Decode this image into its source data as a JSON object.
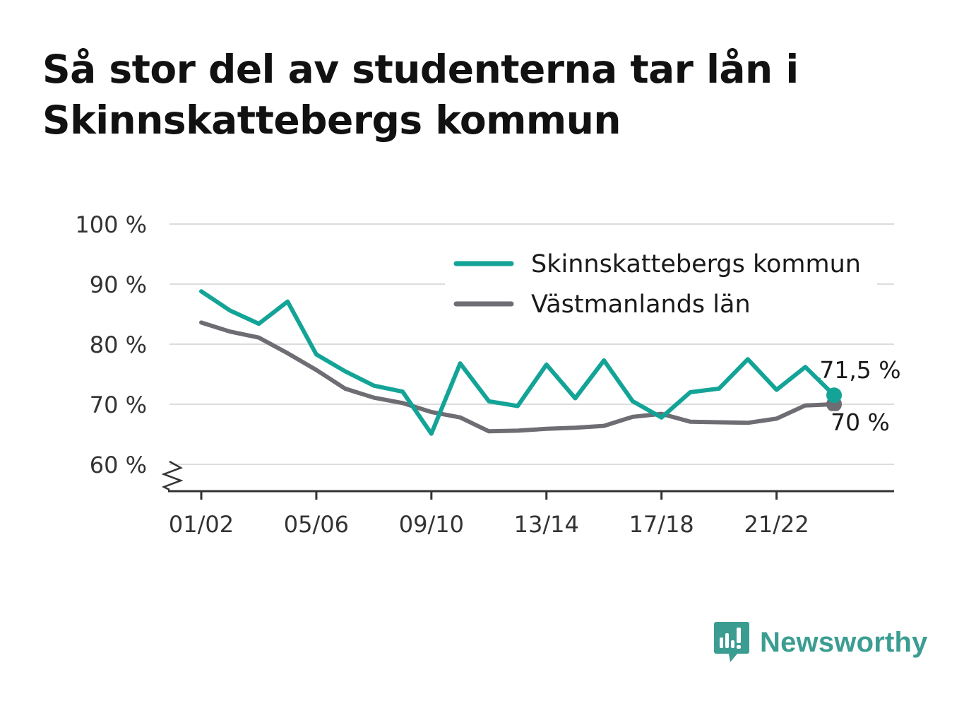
{
  "title_lines": [
    "Så stor del av studenterna tar lån i",
    "Skinnskattebergs kommun"
  ],
  "brand": "Newsworthy",
  "colors": {
    "kommun": "#13a497",
    "lan": "#6e6d73",
    "grid": "#dcdcdc",
    "axis": "#333333",
    "brand": "#3b9d92"
  },
  "chart_data": {
    "type": "line",
    "x": [
      "01/02",
      "02/03",
      "03/04",
      "04/05",
      "05/06",
      "06/07",
      "07/08",
      "08/09",
      "09/10",
      "10/11",
      "11/12",
      "12/13",
      "13/14",
      "14/15",
      "15/16",
      "16/17",
      "17/18",
      "18/19",
      "19/20",
      "20/21",
      "21/22",
      "22/23",
      "23/24"
    ],
    "x_tick_labels": [
      "01/02",
      "05/06",
      "09/10",
      "13/14",
      "17/18",
      "21/22"
    ],
    "series": [
      {
        "name": "Skinnskattebergs kommun",
        "values": [
          88.8,
          85.6,
          83.4,
          87.1,
          78.3,
          75.5,
          73.1,
          72.1,
          65.1,
          76.8,
          70.5,
          69.7,
          76.6,
          71.0,
          77.3,
          70.5,
          67.8,
          72.0,
          72.6,
          77.5,
          72.4,
          76.2,
          71.5
        ],
        "end_label": "71,5 %"
      },
      {
        "name": "Västmanlands län",
        "values": [
          83.6,
          82.1,
          81.1,
          78.5,
          75.7,
          72.6,
          71.1,
          70.2,
          68.7,
          67.8,
          65.5,
          65.6,
          65.9,
          66.1,
          66.4,
          67.9,
          68.4,
          67.1,
          67.0,
          66.9,
          67.6,
          69.8,
          70.0
        ],
        "end_label": "70 %"
      }
    ],
    "y_ticks": [
      60,
      70,
      80,
      90,
      100
    ],
    "y_tick_labels": [
      "60 %",
      "70 %",
      "80 %",
      "90 %",
      "100 %"
    ],
    "ylim": [
      55,
      100
    ],
    "y_axis_break": true,
    "grid": true,
    "legend_position": "top-right"
  }
}
